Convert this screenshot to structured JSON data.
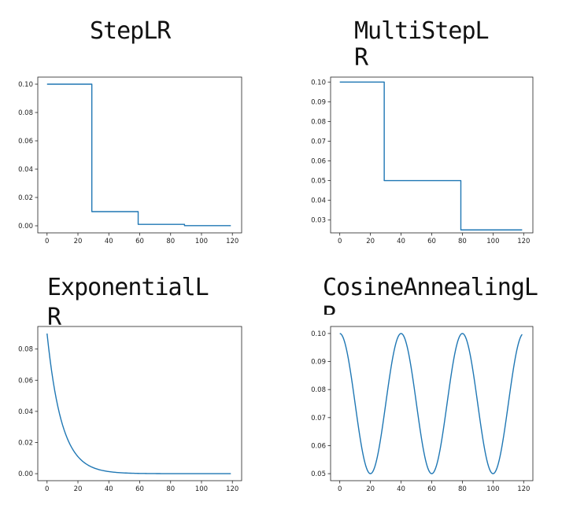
{
  "colors": {
    "line": "#1f77b4",
    "axis": "#222222"
  },
  "titles": [
    [
      "StepLR"
    ],
    [
      "MultiStepL",
      "R"
    ],
    [
      "ExponentialL",
      "R"
    ],
    [
      "CosineAnnealingL",
      "R"
    ]
  ],
  "chart_data": [
    {
      "type": "line",
      "title": "StepLR",
      "xlabel": "",
      "ylabel": "",
      "xlim": [
        -6,
        126
      ],
      "ylim": [
        -0.005,
        0.105
      ],
      "xticks": [
        0,
        20,
        40,
        60,
        80,
        100,
        120
      ],
      "yticks": [
        0.0,
        0.02,
        0.04,
        0.06,
        0.08,
        0.1
      ],
      "ytick_labels": [
        "0.00",
        "0.02",
        "0.04",
        "0.06",
        "0.08",
        "0.10"
      ],
      "grid": false,
      "series": [
        {
          "x": [
            0,
            29,
            29,
            59,
            59,
            89,
            89,
            119
          ],
          "y": [
            0.1,
            0.1,
            0.01,
            0.01,
            0.001,
            0.001,
            0.0001,
            0.0001
          ]
        }
      ]
    },
    {
      "type": "line",
      "title": "MultiStepLR",
      "xlabel": "",
      "ylabel": "",
      "xlim": [
        -6,
        126
      ],
      "ylim": [
        0.0235,
        0.1025
      ],
      "xticks": [
        0,
        20,
        40,
        60,
        80,
        100,
        120
      ],
      "yticks": [
        0.03,
        0.04,
        0.05,
        0.06,
        0.07,
        0.08,
        0.09,
        0.1
      ],
      "ytick_labels": [
        "0.03",
        "0.04",
        "0.05",
        "0.06",
        "0.07",
        "0.08",
        "0.09",
        "0.10"
      ],
      "grid": false,
      "series": [
        {
          "x": [
            0,
            29,
            29,
            79,
            79,
            119
          ],
          "y": [
            0.1,
            0.1,
            0.05,
            0.05,
            0.025,
            0.025
          ]
        }
      ]
    },
    {
      "type": "line",
      "title": "ExponentialLR",
      "xlabel": "",
      "ylabel": "",
      "xlim": [
        -6,
        126
      ],
      "ylim": [
        -0.0045,
        0.0945
      ],
      "xticks": [
        0,
        20,
        40,
        60,
        80,
        100,
        120
      ],
      "yticks": [
        0.0,
        0.02,
        0.04,
        0.06,
        0.08
      ],
      "ytick_labels": [
        "0.00",
        "0.02",
        "0.04",
        "0.06",
        "0.08"
      ],
      "grid": false,
      "function": "exponential",
      "params": {
        "lr0": 0.09,
        "gamma": 0.9,
        "x_end": 119
      }
    },
    {
      "type": "line",
      "title": "CosineAnnealingLR",
      "xlabel": "",
      "ylabel": "",
      "xlim": [
        -6,
        126
      ],
      "ylim": [
        0.0475,
        0.1025
      ],
      "xticks": [
        0,
        20,
        40,
        60,
        80,
        100,
        120
      ],
      "yticks": [
        0.05,
        0.06,
        0.07,
        0.08,
        0.09,
        0.1
      ],
      "ytick_labels": [
        "0.05",
        "0.06",
        "0.07",
        "0.08",
        "0.09",
        "0.10"
      ],
      "grid": false,
      "function": "cosine",
      "params": {
        "lr_max": 0.1,
        "lr_min": 0.05,
        "T_max": 20,
        "x_end": 119
      }
    }
  ]
}
